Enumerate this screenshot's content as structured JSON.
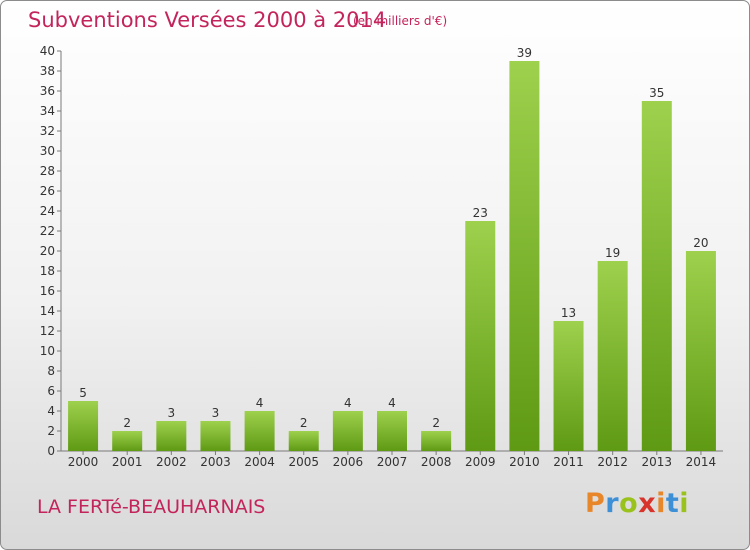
{
  "header": {
    "title": "Subventions Versées 2000 à 2014",
    "subtitle": "(en milliers d'€)"
  },
  "footer": {
    "commune": "LA FERTé-BEAUHARNAIS",
    "logo_text": "Proxiti",
    "logo_colors": [
      "#e8862a",
      "#3d8fd6",
      "#9ac21d",
      "#d9342b",
      "#e8862a",
      "#3d8fd6",
      "#9ac21d"
    ]
  },
  "colors": {
    "bar_top": "#9ed14d",
    "bar_bottom": "#5f9a14",
    "accent": "#c4245c"
  },
  "chart_data": {
    "type": "bar",
    "title": "Subventions Versées 2000 à 2014",
    "subtitle": "(en milliers d'€)",
    "categories": [
      "2000",
      "2001",
      "2002",
      "2003",
      "2004",
      "2005",
      "2006",
      "2007",
      "2008",
      "2009",
      "2010",
      "2011",
      "2012",
      "2013",
      "2014"
    ],
    "values": [
      5,
      2,
      3,
      3,
      4,
      2,
      4,
      4,
      2,
      23,
      39,
      13,
      19,
      35,
      20
    ],
    "ylim": [
      0,
      40
    ],
    "yticks": [
      0,
      2,
      4,
      6,
      8,
      10,
      12,
      14,
      16,
      18,
      20,
      22,
      24,
      26,
      28,
      30,
      32,
      34,
      36,
      38,
      40
    ],
    "grid": false,
    "data_labels": true
  }
}
